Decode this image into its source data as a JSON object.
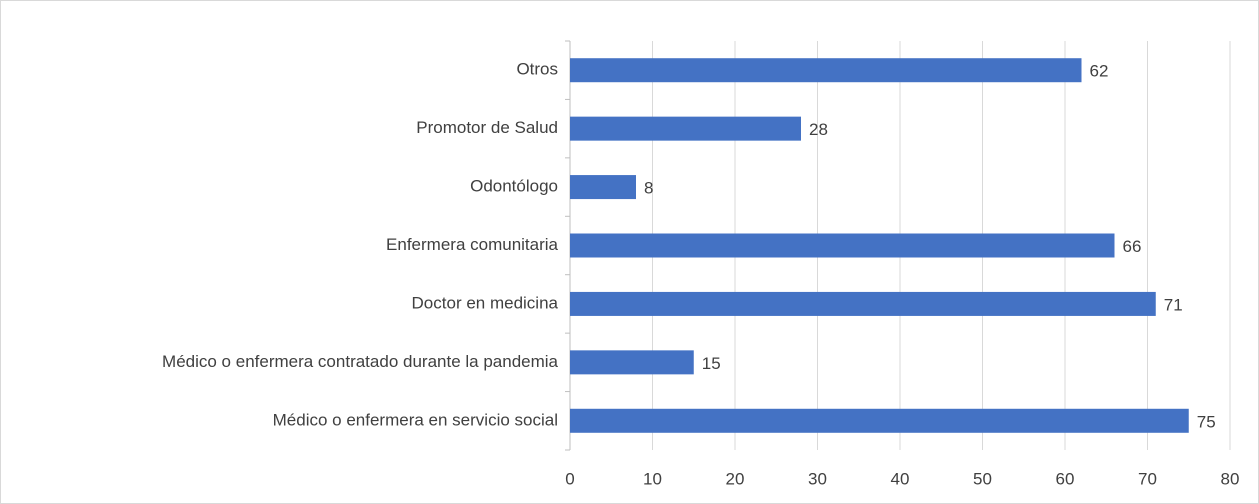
{
  "chart_data": {
    "type": "barh",
    "categories": [
      "Otros",
      "Promotor de Salud",
      "Odontólogo",
      "Enfermera comunitaria",
      "Doctor en medicina",
      "Médico o enfermera contratado durante la pandemia",
      "Médico o enfermera en servicio social"
    ],
    "values": [
      62,
      28,
      8,
      66,
      71,
      15,
      75
    ],
    "color": "#4472c4",
    "xlim": [
      0,
      80
    ],
    "xticks": [
      0,
      10,
      20,
      30,
      40,
      50,
      60,
      70,
      80
    ],
    "grid": true
  }
}
